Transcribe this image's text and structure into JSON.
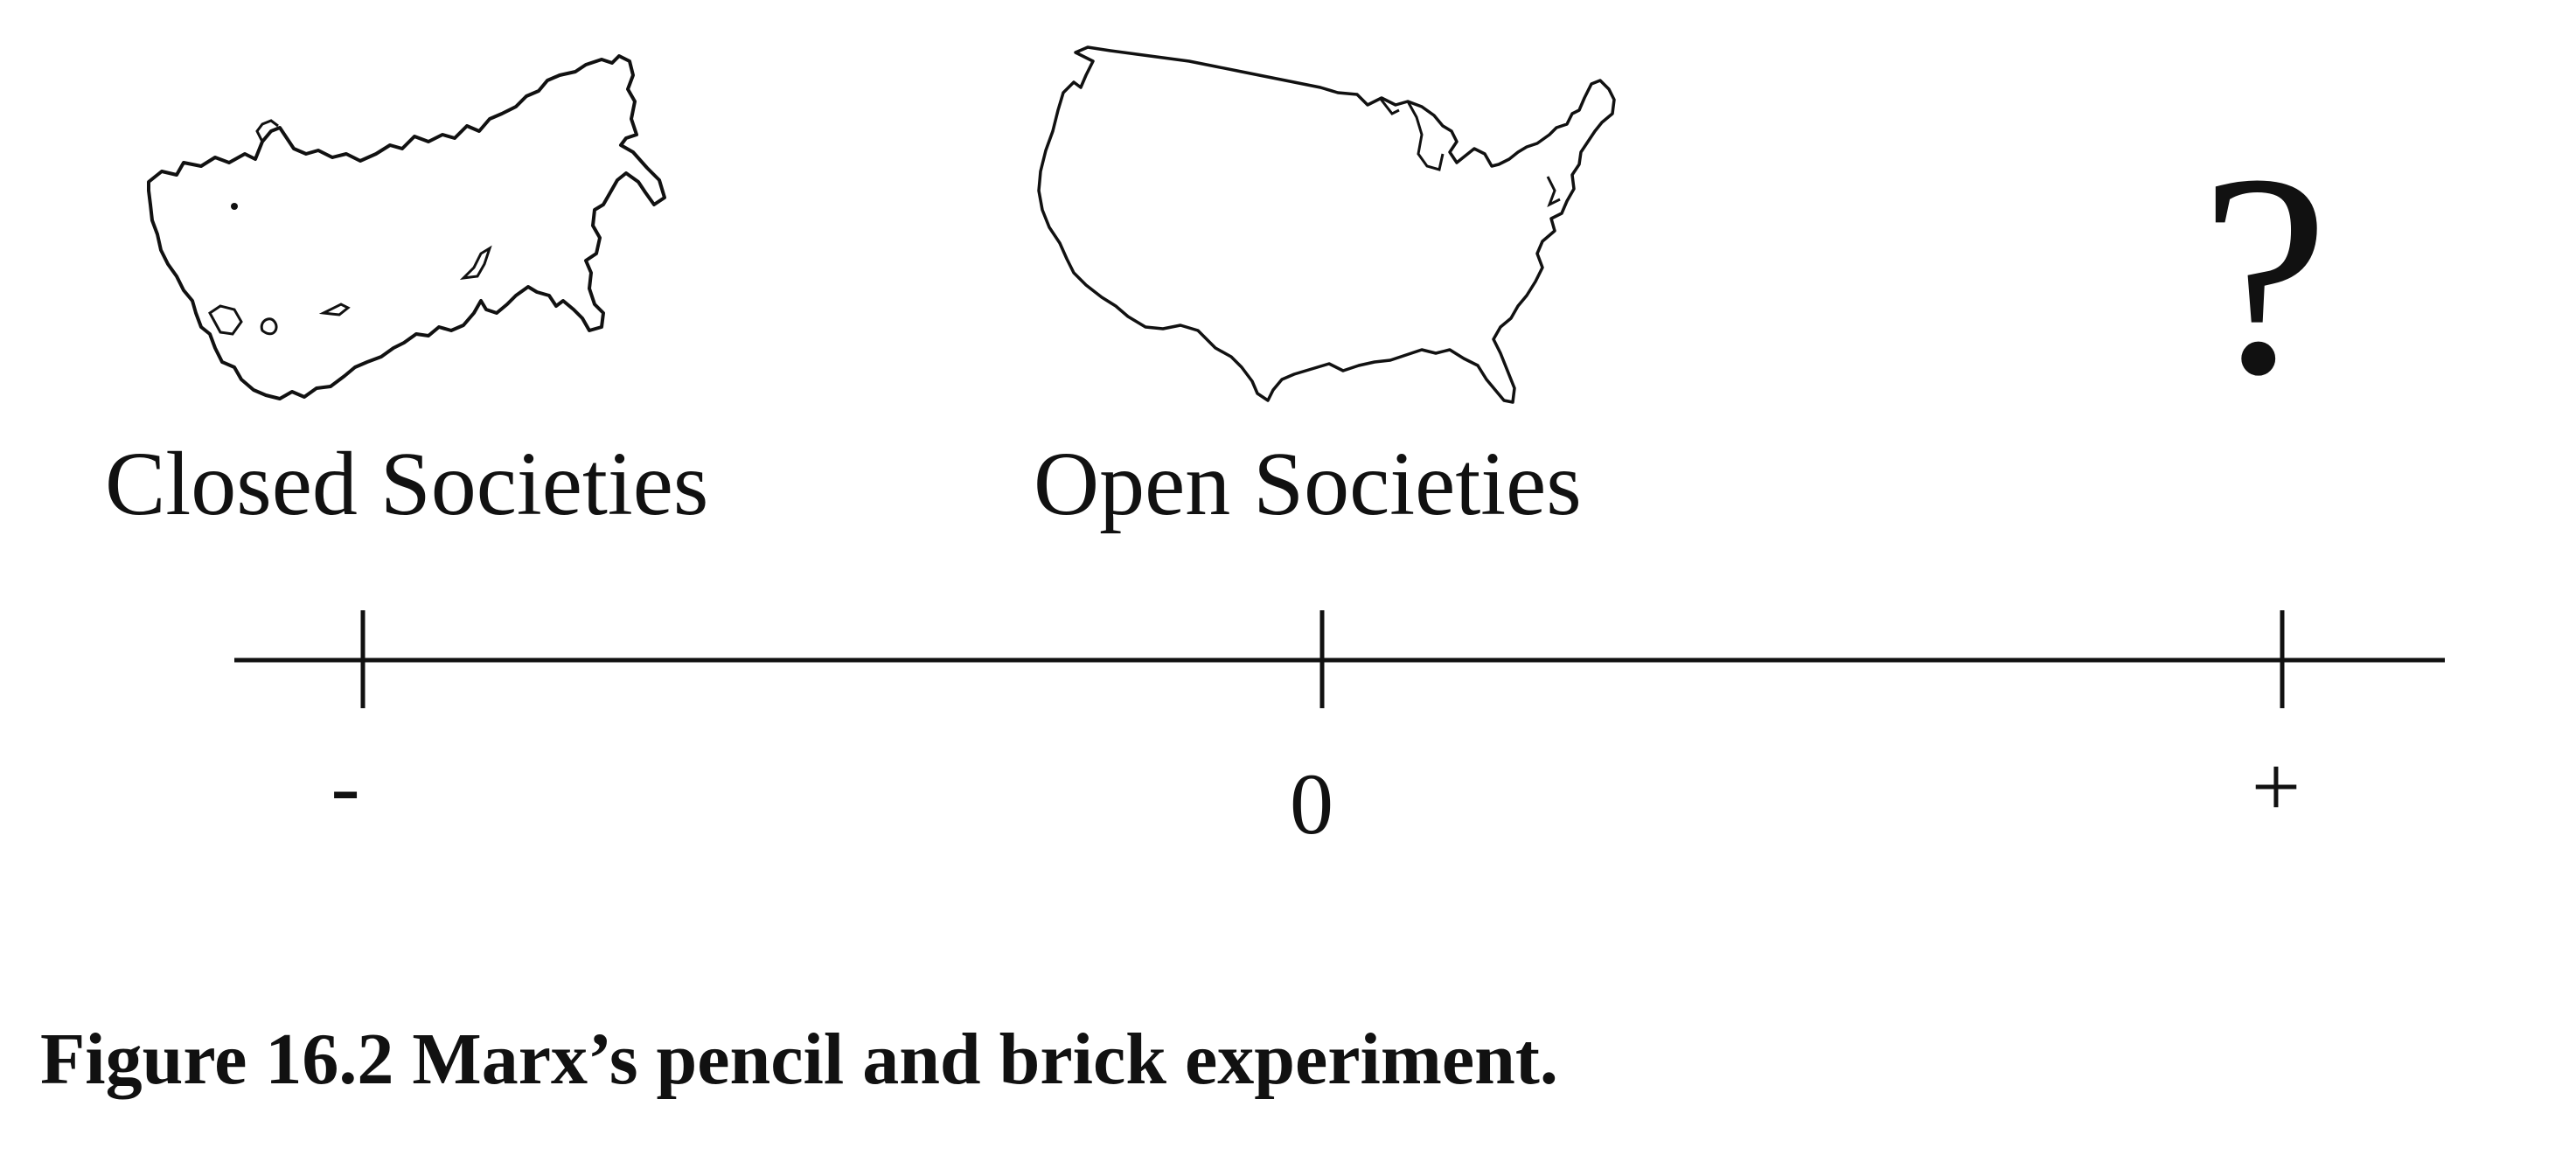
{
  "figure": {
    "closed_label": "Closed Societies",
    "open_label": "Open Societies",
    "question_mark": "?",
    "closed_map_icon": "ussr-map-outline-icon",
    "open_map_icon": "usa-map-outline-icon",
    "scale": {
      "ticks": [
        {
          "label": "-",
          "position": "left"
        },
        {
          "label": "0",
          "position": "center"
        },
        {
          "label": "+",
          "position": "right"
        }
      ]
    },
    "caption": "Figure 16.2  Marx’s pencil and brick experiment."
  }
}
